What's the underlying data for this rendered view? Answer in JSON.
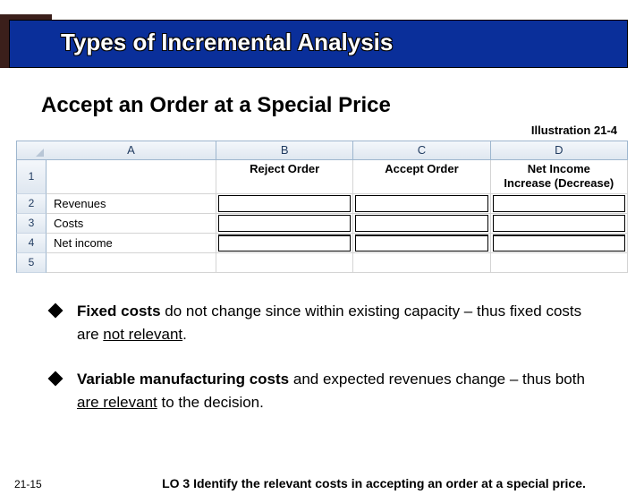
{
  "title": "Types of Incremental Analysis",
  "subtitle": "Accept an Order at a Special Price",
  "illustration_label": "Illustration 21-4",
  "spreadsheet": {
    "columns": [
      "A",
      "B",
      "C",
      "D"
    ],
    "row_numbers": [
      "1",
      "2",
      "3",
      "4",
      "5"
    ],
    "header_row": {
      "B": "Reject Order",
      "C": "Accept Order",
      "D": "Net Income\nIncrease (Decrease)"
    },
    "row_labels": {
      "r2": "Revenues",
      "r3": "Costs",
      "r4": "Net income"
    }
  },
  "bullets": {
    "b1_html": "<b>Fixed costs</b> do not change since within existing capacity – thus fixed costs are <u>not relevant</u>.",
    "b2_html": "<b>Variable manufacturing costs</b> and expected revenues change – thus both <u>are relevant</u> to the decision."
  },
  "footer": {
    "slide_number": "21-15",
    "lo": "LO 3  Identify the relevant costs in accepting an order at a special price."
  },
  "colors": {
    "title_bg": "#0a2f9a",
    "title_block": "#3b1f1b",
    "excel_header_top": "#f4f7fb",
    "excel_header_bottom": "#dfe7f0",
    "excel_border": "#9eb6ce"
  }
}
